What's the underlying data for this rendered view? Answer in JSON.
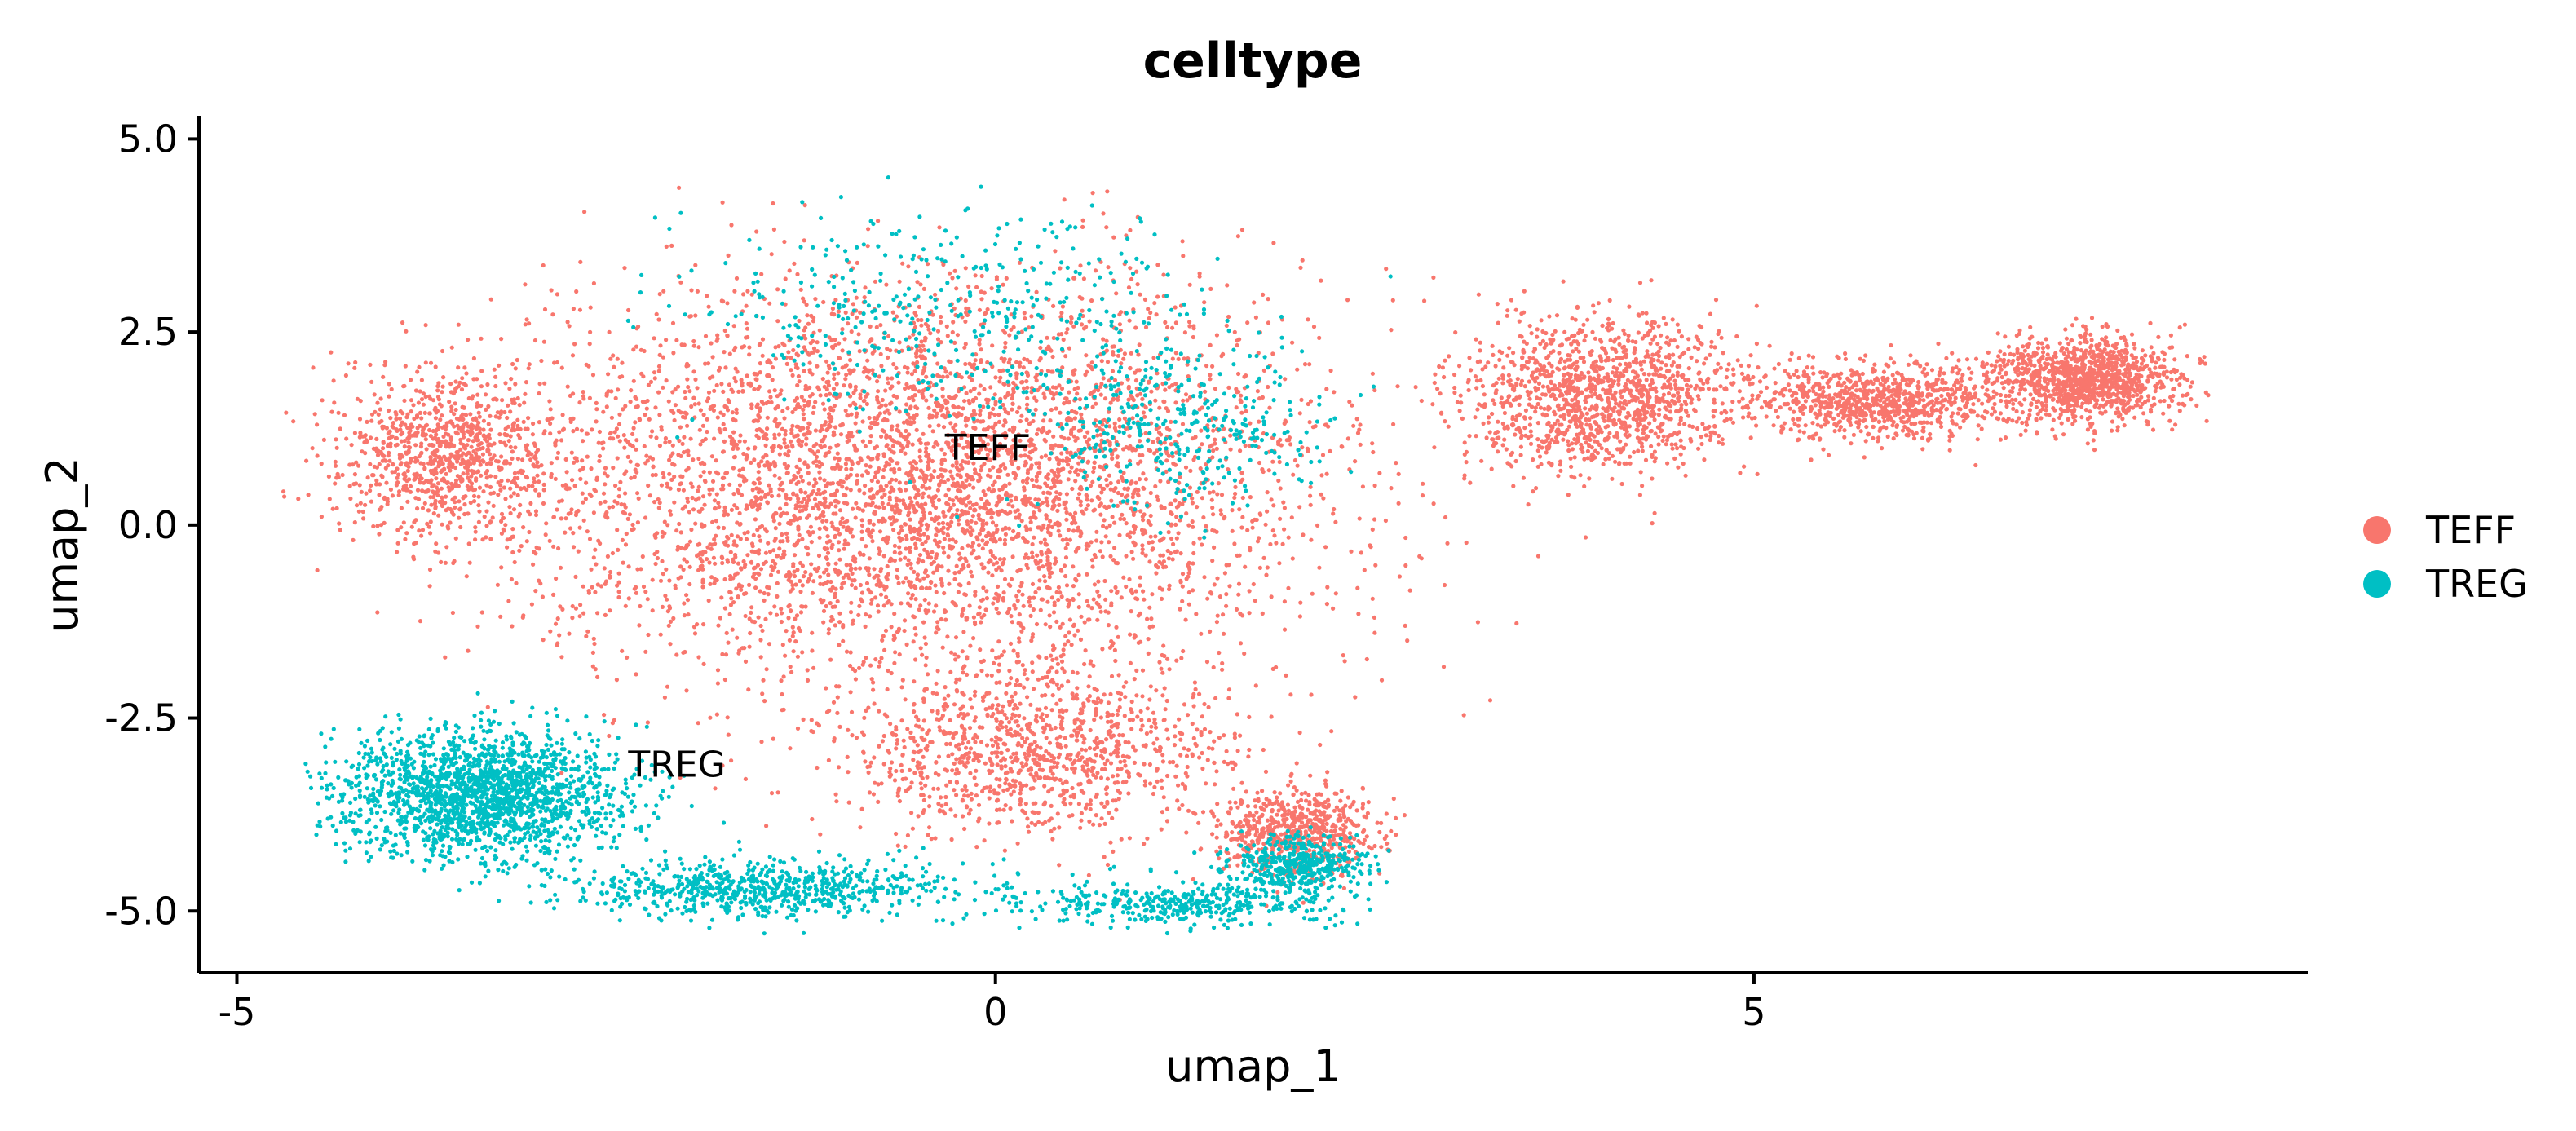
{
  "chart_data": {
    "type": "scatter",
    "title": "celltype",
    "xlabel": "umap_1",
    "ylabel": "umap_2",
    "xlim": [
      -5.25,
      8.65
    ],
    "ylim": [
      -5.8,
      5.3
    ],
    "x_ticks": [
      -5,
      0,
      5
    ],
    "x_tick_labels": [
      "-5",
      "0",
      "5"
    ],
    "y_ticks": [
      5.0,
      2.5,
      0.0,
      -2.5,
      -5.0
    ],
    "y_tick_labels": [
      "5.0",
      "2.5",
      "0.0",
      "-2.5",
      "-5.0"
    ],
    "grid": false,
    "legend_position": "right",
    "series": [
      {
        "name": "TEFF",
        "color": "#F8766D",
        "centroid_label": "TEFF",
        "centroid": [
          -0.05,
          1.0
        ],
        "regions": [
          {
            "center": [
              -0.5,
              0.6
            ],
            "spread": [
              2.4,
              2.3
            ],
            "weight": 0.46
          },
          {
            "center": [
              -3.6,
              0.9
            ],
            "spread": [
              0.7,
              1.0
            ],
            "weight": 0.08
          },
          {
            "center": [
              0.2,
              -2.9
            ],
            "spread": [
              1.2,
              1.0
            ],
            "weight": 0.1
          },
          {
            "center": [
              4.0,
              1.7
            ],
            "spread": [
              0.8,
              0.9
            ],
            "weight": 0.12
          },
          {
            "center": [
              5.8,
              1.6
            ],
            "spread": [
              0.8,
              0.45
            ],
            "weight": 0.08
          },
          {
            "center": [
              7.2,
              1.9
            ],
            "spread": [
              0.55,
              0.5
            ],
            "weight": 0.1
          },
          {
            "center": [
              2.0,
              -4.0
            ],
            "spread": [
              0.5,
              0.5
            ],
            "weight": 0.06
          }
        ],
        "n_points": 11000
      },
      {
        "name": "TREG",
        "color": "#00BFC4",
        "centroid_label": "TREG",
        "centroid": [
          -2.1,
          -3.1
        ],
        "regions": [
          {
            "center": [
              -3.4,
              -3.5
            ],
            "spread": [
              0.85,
              0.75
            ],
            "weight": 0.45
          },
          {
            "center": [
              -1.5,
              -4.7
            ],
            "spread": [
              1.2,
              0.35
            ],
            "weight": 0.17
          },
          {
            "center": [
              1.2,
              -4.9
            ],
            "spread": [
              1.0,
              0.25
            ],
            "weight": 0.1
          },
          {
            "center": [
              2.0,
              -4.4
            ],
            "spread": [
              0.4,
              0.35
            ],
            "weight": 0.1
          },
          {
            "center": [
              1.2,
              1.2
            ],
            "spread": [
              0.9,
              0.9
            ],
            "weight": 0.08
          },
          {
            "center": [
              -0.3,
              2.8
            ],
            "spread": [
              1.5,
              1.2
            ],
            "weight": 0.1
          }
        ],
        "n_points": 4200
      }
    ]
  }
}
